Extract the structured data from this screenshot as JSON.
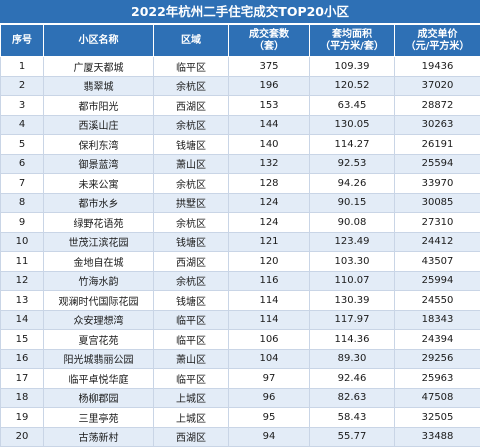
{
  "title": "2022年杭州二手住宅成交TOP20小区",
  "columns": [
    {
      "line1": "序号",
      "line2": ""
    },
    {
      "line1": "小区名称",
      "line2": ""
    },
    {
      "line1": "区域",
      "line2": ""
    },
    {
      "line1": "成交套数",
      "line2": "（套）"
    },
    {
      "line1": "套均面积",
      "line2": "（平方米/套）"
    },
    {
      "line1": "成交单价",
      "line2": "（元/平方米）"
    }
  ],
  "rows": [
    [
      "1",
      "广厦天都城",
      "临平区",
      "375",
      "109.39",
      "19436"
    ],
    [
      "2",
      "翡翠城",
      "余杭区",
      "196",
      "120.52",
      "37020"
    ],
    [
      "3",
      "都市阳光",
      "西湖区",
      "153",
      "63.45",
      "28872"
    ],
    [
      "4",
      "西溪山庄",
      "余杭区",
      "144",
      "130.05",
      "30263"
    ],
    [
      "5",
      "保利东湾",
      "钱塘区",
      "140",
      "114.27",
      "26191"
    ],
    [
      "6",
      "御景蓝湾",
      "萧山区",
      "132",
      "92.53",
      "25594"
    ],
    [
      "7",
      "未来公寓",
      "余杭区",
      "128",
      "94.26",
      "33970"
    ],
    [
      "8",
      "都市水乡",
      "拱墅区",
      "124",
      "90.15",
      "30085"
    ],
    [
      "9",
      "绿野花语苑",
      "余杭区",
      "124",
      "90.08",
      "27310"
    ],
    [
      "10",
      "世茂江滨花园",
      "钱塘区",
      "121",
      "123.49",
      "24412"
    ],
    [
      "11",
      "金地自在城",
      "西湖区",
      "120",
      "103.30",
      "43507"
    ],
    [
      "12",
      "竹海水韵",
      "余杭区",
      "116",
      "110.07",
      "25994"
    ],
    [
      "13",
      "观澜时代国际花园",
      "钱塘区",
      "114",
      "130.39",
      "24550"
    ],
    [
      "14",
      "众安理想湾",
      "临平区",
      "114",
      "117.97",
      "18343"
    ],
    [
      "15",
      "夏宫花苑",
      "临平区",
      "106",
      "114.36",
      "24394"
    ],
    [
      "16",
      "阳光城翡丽公园",
      "萧山区",
      "104",
      "89.30",
      "29256"
    ],
    [
      "17",
      "临平卓悦华庭",
      "临平区",
      "97",
      "92.46",
      "25963"
    ],
    [
      "18",
      "杨柳郡园",
      "上城区",
      "96",
      "82.63",
      "47508"
    ],
    [
      "19",
      "三里亭苑",
      "上城区",
      "95",
      "58.43",
      "32505"
    ],
    [
      "20",
      "古荡新村",
      "西湖区",
      "94",
      "55.77",
      "33488"
    ]
  ],
  "colors": {
    "header_bg": "#2e70b5",
    "stripe": "#e3ecf7",
    "text": "#1a1a1a"
  }
}
